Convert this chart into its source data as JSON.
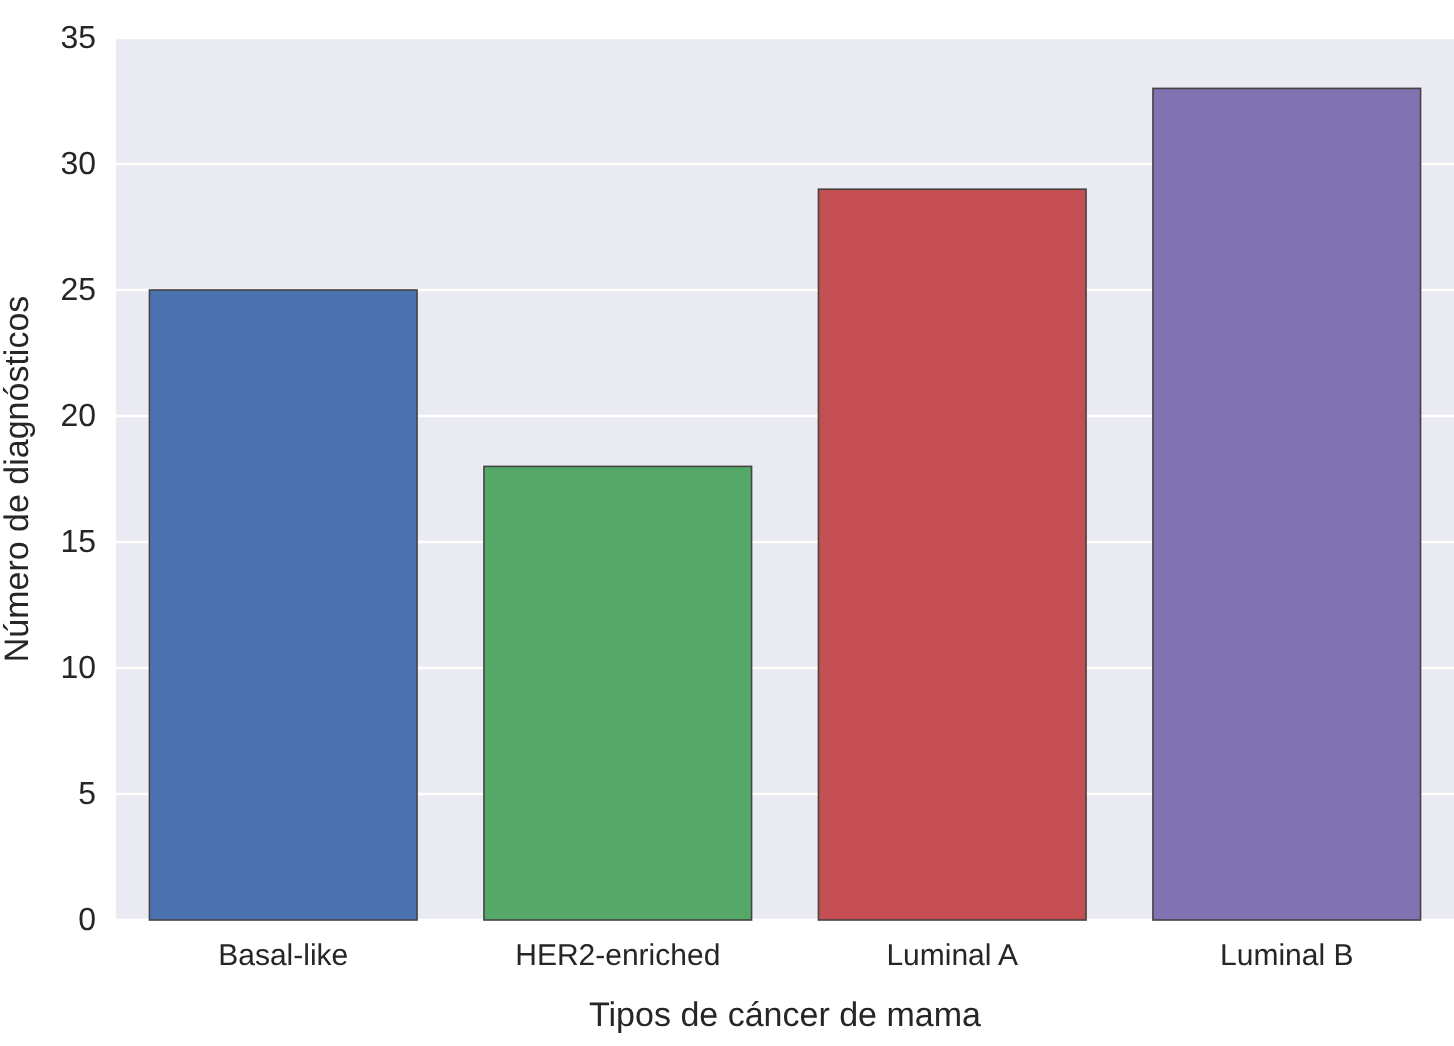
{
  "chart_data": {
    "type": "bar",
    "xlabel": "Tipos de cáncer de mama",
    "ylabel": "Número de diagnósticos",
    "categories": [
      "Basal-like",
      "HER2-enriched",
      "Luminal A",
      "Luminal B"
    ],
    "values": [
      25,
      18,
      29,
      33
    ],
    "colors": [
      "#4c72b0",
      "#55a868",
      "#c44e52",
      "#8172b2"
    ],
    "ylim": [
      0,
      35
    ],
    "yticks": [
      0,
      5,
      10,
      15,
      20,
      25,
      30,
      35
    ],
    "grid": "y"
  }
}
